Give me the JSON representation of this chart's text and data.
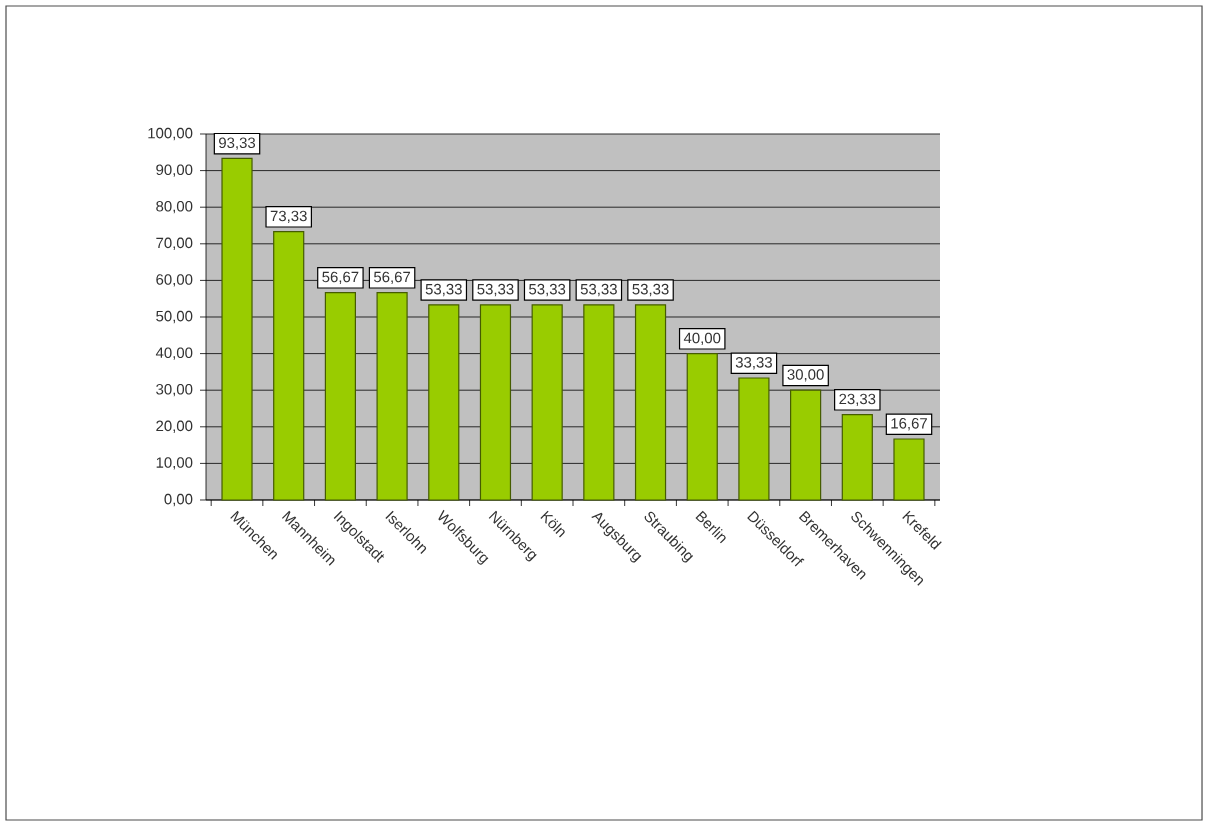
{
  "chart_data": {
    "type": "bar",
    "categories": [
      "München",
      "Mannheim",
      "Ingolstadt",
      "Iserlohn",
      "Wolfsburg",
      "Nürnberg",
      "Köln",
      "Augsburg",
      "Straubing",
      "Berlin",
      "Düsseldorf",
      "Bremerhaven",
      "Schwenningen",
      "Krefeld"
    ],
    "values": [
      93.33,
      73.33,
      56.67,
      56.67,
      53.33,
      53.33,
      53.33,
      53.33,
      53.33,
      40.0,
      33.33,
      30.0,
      23.33,
      16.67
    ],
    "value_labels": [
      "93,33",
      "73,33",
      "56,67",
      "56,67",
      "53,33",
      "53,33",
      "53,33",
      "53,33",
      "53,33",
      "40,00",
      "33,33",
      "30,00",
      "23,33",
      "16,67"
    ],
    "color": "#99cc00",
    "ylim": [
      0,
      100
    ],
    "yticks": [
      {
        "value": 0,
        "label": "0,00"
      },
      {
        "value": 10,
        "label": "10,00"
      },
      {
        "value": 20,
        "label": "20,00"
      },
      {
        "value": 30,
        "label": "30,00"
      },
      {
        "value": 40,
        "label": "40,00"
      },
      {
        "value": 50,
        "label": "50,00"
      },
      {
        "value": 60,
        "label": "60,00"
      },
      {
        "value": 70,
        "label": "70,00"
      },
      {
        "value": 80,
        "label": "80,00"
      },
      {
        "value": 90,
        "label": "90,00"
      },
      {
        "value": 100,
        "label": "100,00"
      }
    ],
    "grid": "y"
  }
}
